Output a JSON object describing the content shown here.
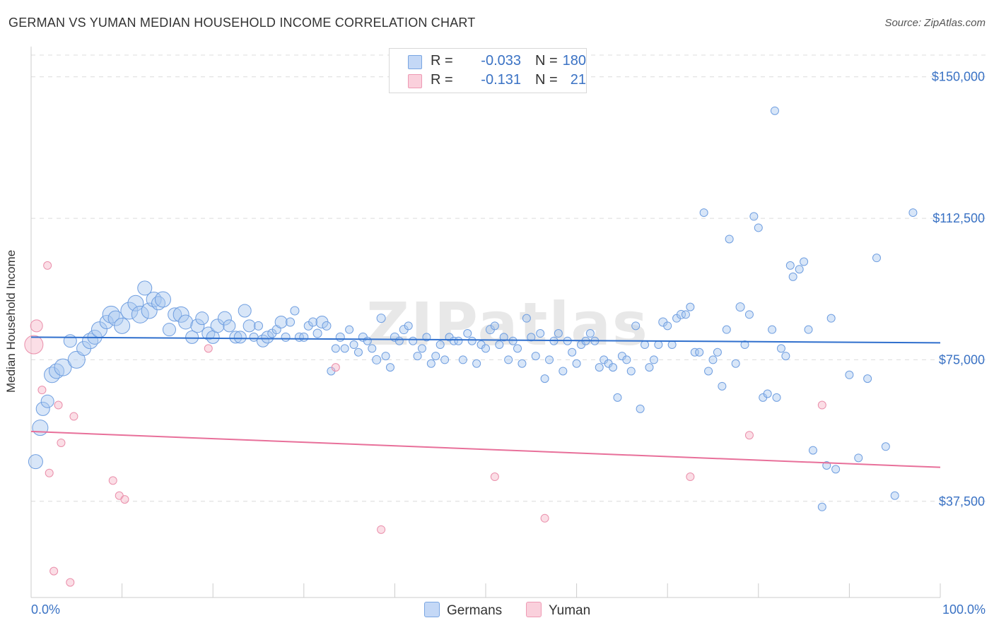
{
  "title": "GERMAN VS YUMAN MEDIAN HOUSEHOLD INCOME CORRELATION CHART",
  "source": "Source: ZipAtlas.com",
  "watermark": "ZIPatlas",
  "chart_data": {
    "type": "scatter",
    "ylabel": "Median Household Income",
    "xlim": [
      0,
      100
    ],
    "ylim": [
      12000,
      158000
    ],
    "x_tick_labels": [
      "0.0%",
      "100.0%"
    ],
    "y_ticks": [
      37500,
      75000,
      112500,
      150000
    ],
    "y_tick_labels": [
      "$37,500",
      "$75,000",
      "$112,500",
      "$150,000"
    ],
    "grid": "horizontal-dashed",
    "legend": {
      "placement": "top-center",
      "entries": [
        {
          "r_label": "R =",
          "r_value": "-0.033",
          "n_label": "N =",
          "n_value": "180",
          "color": "#a9c8f0"
        },
        {
          "r_label": "R =",
          "r_value": "-0.131",
          "n_label": "N =",
          "n_value": "21",
          "color": "#f7b6c8"
        }
      ]
    },
    "series": [
      {
        "name": "Germans",
        "color": "#a9c8f0",
        "stroke": "#6f9ee0",
        "trend": {
          "x0": 0,
          "y0": 81000,
          "x1": 100,
          "y1": 79500,
          "color": "#2f6fcd"
        },
        "points": [
          [
            0.5,
            48000,
            16
          ],
          [
            1.0,
            57000,
            18
          ],
          [
            1.3,
            62000,
            15
          ],
          [
            1.8,
            64000,
            14
          ],
          [
            2.3,
            71000,
            18
          ],
          [
            2.8,
            72000,
            17
          ],
          [
            3.5,
            73000,
            20
          ],
          [
            4.3,
            80000,
            14
          ],
          [
            5.0,
            75000,
            20
          ],
          [
            5.8,
            78000,
            16
          ],
          [
            6.5,
            80000,
            18
          ],
          [
            7.0,
            81000,
            16
          ],
          [
            7.5,
            83000,
            18
          ],
          [
            8.3,
            85000,
            15
          ],
          [
            8.8,
            87000,
            20
          ],
          [
            9.3,
            86000,
            17
          ],
          [
            10.0,
            84000,
            18
          ],
          [
            10.8,
            88000,
            20
          ],
          [
            11.5,
            90000,
            18
          ],
          [
            12.0,
            87000,
            20
          ],
          [
            12.5,
            94000,
            16
          ],
          [
            13.0,
            88000,
            18
          ],
          [
            13.5,
            91000,
            17
          ],
          [
            14.0,
            90000,
            15
          ],
          [
            14.5,
            91000,
            18
          ],
          [
            15.2,
            83000,
            14
          ],
          [
            15.8,
            87000,
            15
          ],
          [
            16.5,
            87000,
            18
          ],
          [
            17.0,
            85000,
            16
          ],
          [
            17.7,
            81000,
            14
          ],
          [
            18.3,
            84000,
            15
          ],
          [
            18.8,
            86000,
            14
          ],
          [
            19.5,
            82000,
            14
          ],
          [
            20.0,
            81000,
            14
          ],
          [
            20.5,
            84000,
            15
          ],
          [
            21.3,
            86000,
            15
          ],
          [
            21.8,
            84000,
            13
          ],
          [
            22.5,
            81000,
            13
          ],
          [
            23.0,
            81000,
            13
          ],
          [
            23.5,
            88000,
            14
          ],
          [
            24.0,
            84000,
            13
          ],
          [
            24.5,
            81000,
            12
          ],
          [
            25.0,
            84000,
            12
          ],
          [
            25.5,
            80000,
            13
          ],
          [
            26.0,
            81000,
            13
          ],
          [
            26.5,
            82000,
            12
          ],
          [
            27.0,
            83000,
            12
          ],
          [
            27.5,
            85000,
            13
          ],
          [
            28.0,
            81000,
            12
          ],
          [
            28.5,
            85000,
            12
          ],
          [
            29.0,
            88000,
            12
          ],
          [
            29.5,
            81000,
            12
          ],
          [
            30.0,
            81000,
            12
          ],
          [
            30.5,
            84000,
            12
          ],
          [
            31.0,
            85000,
            12
          ],
          [
            31.5,
            82000,
            12
          ],
          [
            32.0,
            85000,
            13
          ],
          [
            32.5,
            84000,
            12
          ],
          [
            33.0,
            72000,
            11
          ],
          [
            33.5,
            78000,
            11
          ],
          [
            34.0,
            81000,
            12
          ],
          [
            34.5,
            78000,
            11
          ],
          [
            35.0,
            83000,
            11
          ],
          [
            35.5,
            79000,
            11
          ],
          [
            36.0,
            77000,
            11
          ],
          [
            36.5,
            81000,
            12
          ],
          [
            37.0,
            80000,
            11
          ],
          [
            37.5,
            78000,
            11
          ],
          [
            38.0,
            75000,
            12
          ],
          [
            38.5,
            86000,
            12
          ],
          [
            39.0,
            76000,
            11
          ],
          [
            39.5,
            73000,
            11
          ],
          [
            40.0,
            81000,
            12
          ],
          [
            40.5,
            80000,
            11
          ],
          [
            41.0,
            83000,
            12
          ],
          [
            41.5,
            84000,
            11
          ],
          [
            42.0,
            80000,
            11
          ],
          [
            42.5,
            76000,
            11
          ],
          [
            43.0,
            78000,
            11
          ],
          [
            43.5,
            81000,
            11
          ],
          [
            44.0,
            74000,
            11
          ],
          [
            44.5,
            76000,
            11
          ],
          [
            45.0,
            79000,
            11
          ],
          [
            45.5,
            75000,
            11
          ],
          [
            46.0,
            81000,
            11
          ],
          [
            46.5,
            80000,
            11
          ],
          [
            47.0,
            80000,
            11
          ],
          [
            47.5,
            75000,
            11
          ],
          [
            48.0,
            82000,
            11
          ],
          [
            48.5,
            80000,
            11
          ],
          [
            49.0,
            74000,
            11
          ],
          [
            49.5,
            79000,
            11
          ],
          [
            50.0,
            78000,
            11
          ],
          [
            50.5,
            83000,
            12
          ],
          [
            51.0,
            84000,
            11
          ],
          [
            51.5,
            79000,
            11
          ],
          [
            52.0,
            81000,
            11
          ],
          [
            52.5,
            75000,
            11
          ],
          [
            53.0,
            80000,
            11
          ],
          [
            53.5,
            78000,
            11
          ],
          [
            54.0,
            74000,
            11
          ],
          [
            54.5,
            86000,
            11
          ],
          [
            55.0,
            81000,
            11
          ],
          [
            55.5,
            76000,
            11
          ],
          [
            56.0,
            82000,
            11
          ],
          [
            56.5,
            70000,
            11
          ],
          [
            57.0,
            75000,
            11
          ],
          [
            57.5,
            80000,
            11
          ],
          [
            58.0,
            82000,
            11
          ],
          [
            58.5,
            72000,
            11
          ],
          [
            59.0,
            80000,
            11
          ],
          [
            59.5,
            77000,
            11
          ],
          [
            60.0,
            74000,
            11
          ],
          [
            60.5,
            79000,
            11
          ],
          [
            61.0,
            80000,
            11
          ],
          [
            61.5,
            82000,
            11
          ],
          [
            62.0,
            80000,
            11
          ],
          [
            62.5,
            73000,
            11
          ],
          [
            63.0,
            75000,
            11
          ],
          [
            63.5,
            74000,
            11
          ],
          [
            64.0,
            73000,
            11
          ],
          [
            64.5,
            65000,
            11
          ],
          [
            65.0,
            76000,
            11
          ],
          [
            65.5,
            75000,
            11
          ],
          [
            66.0,
            72000,
            11
          ],
          [
            66.5,
            84000,
            11
          ],
          [
            67.0,
            62000,
            11
          ],
          [
            67.5,
            79000,
            11
          ],
          [
            68.0,
            73000,
            11
          ],
          [
            68.5,
            75000,
            11
          ],
          [
            69.0,
            79000,
            11
          ],
          [
            69.5,
            85000,
            12
          ],
          [
            70.0,
            84000,
            11
          ],
          [
            70.5,
            79000,
            11
          ],
          [
            71.0,
            86000,
            11
          ],
          [
            71.5,
            87000,
            12
          ],
          [
            72.0,
            87000,
            11
          ],
          [
            72.5,
            89000,
            11
          ],
          [
            73.0,
            77000,
            11
          ],
          [
            73.5,
            77000,
            11
          ],
          [
            74.0,
            114000,
            11
          ],
          [
            74.5,
            72000,
            11
          ],
          [
            75.0,
            75000,
            11
          ],
          [
            75.5,
            77000,
            11
          ],
          [
            76.0,
            68000,
            11
          ],
          [
            76.5,
            83000,
            11
          ],
          [
            76.8,
            107000,
            11
          ],
          [
            77.5,
            74000,
            11
          ],
          [
            78.0,
            89000,
            12
          ],
          [
            78.5,
            79000,
            11
          ],
          [
            79.0,
            87000,
            11
          ],
          [
            79.5,
            113000,
            11
          ],
          [
            80.0,
            110000,
            11
          ],
          [
            80.5,
            65000,
            11
          ],
          [
            81.0,
            66000,
            11
          ],
          [
            81.5,
            83000,
            11
          ],
          [
            81.8,
            141000,
            11
          ],
          [
            82.0,
            65000,
            11
          ],
          [
            82.5,
            78000,
            11
          ],
          [
            83.0,
            76000,
            11
          ],
          [
            83.5,
            100000,
            11
          ],
          [
            83.8,
            97000,
            11
          ],
          [
            84.5,
            99000,
            11
          ],
          [
            85.0,
            101000,
            11
          ],
          [
            85.5,
            83000,
            11
          ],
          [
            86.0,
            51000,
            11
          ],
          [
            87.0,
            36000,
            11
          ],
          [
            87.5,
            47000,
            11
          ],
          [
            88.0,
            86000,
            11
          ],
          [
            88.5,
            46000,
            11
          ],
          [
            90.0,
            71000,
            11
          ],
          [
            91.0,
            49000,
            11
          ],
          [
            92.0,
            70000,
            11
          ],
          [
            93.0,
            102000,
            11
          ],
          [
            94.0,
            52000,
            11
          ],
          [
            95.0,
            39000,
            11
          ],
          [
            97.0,
            114000,
            11
          ]
        ]
      },
      {
        "name": "Yuman",
        "color": "#f7b6c8",
        "stroke": "#ea8fab",
        "trend": {
          "x0": 0,
          "y0": 56000,
          "x1": 100,
          "y1": 46500,
          "color": "#e8709a"
        },
        "points": [
          [
            0.3,
            79000,
            22
          ],
          [
            0.6,
            84000,
            13
          ],
          [
            1.2,
            67000,
            11
          ],
          [
            1.8,
            100000,
            11
          ],
          [
            2.0,
            45000,
            11
          ],
          [
            2.5,
            19000,
            11
          ],
          [
            3.0,
            63000,
            11
          ],
          [
            3.3,
            53000,
            11
          ],
          [
            4.3,
            16000,
            11
          ],
          [
            4.7,
            60000,
            11
          ],
          [
            9.0,
            43000,
            11
          ],
          [
            9.7,
            39000,
            11
          ],
          [
            10.3,
            38000,
            11
          ],
          [
            19.5,
            78000,
            11
          ],
          [
            33.5,
            73000,
            11
          ],
          [
            38.5,
            30000,
            11
          ],
          [
            51.0,
            44000,
            11
          ],
          [
            56.5,
            33000,
            11
          ],
          [
            72.5,
            44000,
            11
          ],
          [
            79.0,
            55000,
            11
          ],
          [
            87.0,
            63000,
            11
          ]
        ]
      }
    ]
  }
}
